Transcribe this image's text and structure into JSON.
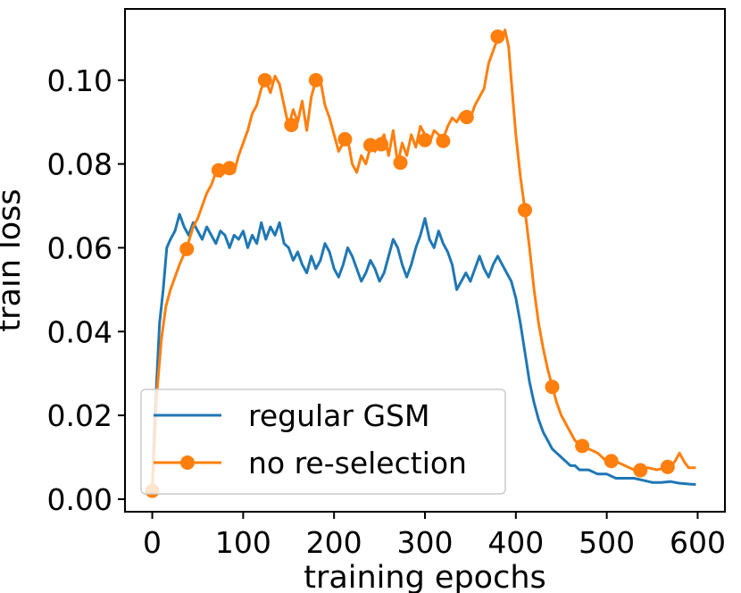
{
  "chart_data": {
    "type": "line",
    "title": "",
    "xlabel": "training epochs",
    "ylabel": "train loss",
    "xlim": [
      -30,
      630
    ],
    "ylim": [
      -0.003,
      0.117
    ],
    "xticks": [
      0,
      100,
      200,
      300,
      400,
      500,
      600
    ],
    "xtick_labels": [
      "0",
      "100",
      "200",
      "300",
      "400",
      "500",
      "600"
    ],
    "yticks": [
      0.0,
      0.02,
      0.04,
      0.06,
      0.08,
      0.1
    ],
    "ytick_labels": [
      "0.00",
      "0.02",
      "0.04",
      "0.06",
      "0.08",
      "0.10"
    ],
    "grid": false,
    "legend_position": "lower-left",
    "series": [
      {
        "name": "regular GSM",
        "color": "#1f77b4",
        "marker": "none",
        "points": [
          [
            0,
            0.002
          ],
          [
            3,
            0.02
          ],
          [
            8,
            0.042
          ],
          [
            12,
            0.05
          ],
          [
            16,
            0.06
          ],
          [
            20,
            0.062
          ],
          [
            25,
            0.064
          ],
          [
            30,
            0.068
          ],
          [
            35,
            0.065
          ],
          [
            40,
            0.063
          ],
          [
            45,
            0.066
          ],
          [
            50,
            0.064
          ],
          [
            55,
            0.062
          ],
          [
            60,
            0.065
          ],
          [
            65,
            0.063
          ],
          [
            70,
            0.061
          ],
          [
            75,
            0.064
          ],
          [
            80,
            0.063
          ],
          [
            85,
            0.06
          ],
          [
            90,
            0.063
          ],
          [
            95,
            0.062
          ],
          [
            100,
            0.064
          ],
          [
            105,
            0.06
          ],
          [
            110,
            0.063
          ],
          [
            115,
            0.061
          ],
          [
            120,
            0.066
          ],
          [
            125,
            0.062
          ],
          [
            130,
            0.065
          ],
          [
            135,
            0.063
          ],
          [
            140,
            0.066
          ],
          [
            145,
            0.061
          ],
          [
            150,
            0.06
          ],
          [
            155,
            0.057
          ],
          [
            160,
            0.059
          ],
          [
            165,
            0.056
          ],
          [
            170,
            0.054
          ],
          [
            175,
            0.058
          ],
          [
            180,
            0.055
          ],
          [
            185,
            0.057
          ],
          [
            190,
            0.061
          ],
          [
            195,
            0.059
          ],
          [
            200,
            0.055
          ],
          [
            205,
            0.053
          ],
          [
            210,
            0.056
          ],
          [
            215,
            0.06
          ],
          [
            220,
            0.058
          ],
          [
            225,
            0.055
          ],
          [
            230,
            0.052
          ],
          [
            235,
            0.054
          ],
          [
            240,
            0.057
          ],
          [
            245,
            0.055
          ],
          [
            250,
            0.052
          ],
          [
            255,
            0.054
          ],
          [
            260,
            0.058
          ],
          [
            265,
            0.062
          ],
          [
            270,
            0.06
          ],
          [
            275,
            0.056
          ],
          [
            280,
            0.053
          ],
          [
            285,
            0.056
          ],
          [
            290,
            0.06
          ],
          [
            295,
            0.063
          ],
          [
            300,
            0.067
          ],
          [
            305,
            0.062
          ],
          [
            310,
            0.06
          ],
          [
            315,
            0.064
          ],
          [
            320,
            0.061
          ],
          [
            325,
            0.059
          ],
          [
            330,
            0.056
          ],
          [
            335,
            0.05
          ],
          [
            340,
            0.052
          ],
          [
            345,
            0.054
          ],
          [
            350,
            0.052
          ],
          [
            355,
            0.055
          ],
          [
            360,
            0.058
          ],
          [
            365,
            0.055
          ],
          [
            370,
            0.053
          ],
          [
            375,
            0.056
          ],
          [
            380,
            0.058
          ],
          [
            385,
            0.056
          ],
          [
            390,
            0.054
          ],
          [
            395,
            0.052
          ],
          [
            400,
            0.048
          ],
          [
            405,
            0.042
          ],
          [
            410,
            0.035
          ],
          [
            415,
            0.028
          ],
          [
            420,
            0.023
          ],
          [
            425,
            0.019
          ],
          [
            430,
            0.016
          ],
          [
            435,
            0.014
          ],
          [
            440,
            0.012
          ],
          [
            445,
            0.011
          ],
          [
            450,
            0.01
          ],
          [
            455,
            0.009
          ],
          [
            460,
            0.008
          ],
          [
            465,
            0.008
          ],
          [
            470,
            0.007
          ],
          [
            480,
            0.007
          ],
          [
            490,
            0.006
          ],
          [
            500,
            0.006
          ],
          [
            510,
            0.005
          ],
          [
            520,
            0.005
          ],
          [
            530,
            0.005
          ],
          [
            540,
            0.0045
          ],
          [
            550,
            0.004
          ],
          [
            560,
            0.004
          ],
          [
            570,
            0.0042
          ],
          [
            580,
            0.0038
          ],
          [
            590,
            0.0036
          ],
          [
            598,
            0.0035
          ]
        ]
      },
      {
        "name": "no re-selection",
        "color": "#ff7f0e",
        "marker": "circle",
        "points": [
          [
            0,
            0.002
          ],
          [
            5,
            0.025
          ],
          [
            10,
            0.038
          ],
          [
            15,
            0.046
          ],
          [
            20,
            0.05
          ],
          [
            25,
            0.053
          ],
          [
            30,
            0.056
          ],
          [
            38,
            0.06
          ],
          [
            45,
            0.065
          ],
          [
            50,
            0.067
          ],
          [
            55,
            0.07
          ],
          [
            60,
            0.073
          ],
          [
            65,
            0.075
          ],
          [
            70,
            0.078
          ],
          [
            75,
            0.077
          ],
          [
            80,
            0.079
          ],
          [
            85,
            0.08
          ],
          [
            90,
            0.078
          ],
          [
            95,
            0.082
          ],
          [
            100,
            0.085
          ],
          [
            105,
            0.088
          ],
          [
            110,
            0.092
          ],
          [
            115,
            0.094
          ],
          [
            120,
            0.098
          ],
          [
            125,
            0.1
          ],
          [
            130,
            0.097
          ],
          [
            135,
            0.101
          ],
          [
            140,
            0.099
          ],
          [
            145,
            0.094
          ],
          [
            150,
            0.089
          ],
          [
            155,
            0.093
          ],
          [
            160,
            0.09
          ],
          [
            165,
            0.095
          ],
          [
            170,
            0.088
          ],
          [
            175,
            0.096
          ],
          [
            180,
            0.1
          ],
          [
            185,
            0.1
          ],
          [
            190,
            0.094
          ],
          [
            195,
            0.091
          ],
          [
            200,
            0.087
          ],
          [
            205,
            0.083
          ],
          [
            210,
            0.085
          ],
          [
            215,
            0.086
          ],
          [
            220,
            0.08
          ],
          [
            225,
            0.078
          ],
          [
            230,
            0.082
          ],
          [
            235,
            0.08
          ],
          [
            240,
            0.084
          ],
          [
            245,
            0.083
          ],
          [
            250,
            0.085
          ],
          [
            255,
            0.087
          ],
          [
            260,
            0.082
          ],
          [
            265,
            0.088
          ],
          [
            270,
            0.08
          ],
          [
            275,
            0.085
          ],
          [
            280,
            0.082
          ],
          [
            285,
            0.087
          ],
          [
            290,
            0.084
          ],
          [
            295,
            0.089
          ],
          [
            300,
            0.087
          ],
          [
            305,
            0.085
          ],
          [
            310,
            0.088
          ],
          [
            315,
            0.087
          ],
          [
            320,
            0.086
          ],
          [
            325,
            0.089
          ],
          [
            330,
            0.091
          ],
          [
            335,
            0.09
          ],
          [
            340,
            0.092
          ],
          [
            345,
            0.09
          ],
          [
            350,
            0.091
          ],
          [
            355,
            0.094
          ],
          [
            360,
            0.096
          ],
          [
            365,
            0.098
          ],
          [
            370,
            0.104
          ],
          [
            375,
            0.107
          ],
          [
            380,
            0.11
          ],
          [
            385,
            0.11
          ],
          [
            388,
            0.112
          ],
          [
            392,
            0.108
          ],
          [
            395,
            0.1
          ],
          [
            400,
            0.087
          ],
          [
            405,
            0.077
          ],
          [
            410,
            0.069
          ],
          [
            415,
            0.06
          ],
          [
            420,
            0.05
          ],
          [
            425,
            0.042
          ],
          [
            430,
            0.036
          ],
          [
            435,
            0.031
          ],
          [
            440,
            0.027
          ],
          [
            445,
            0.023
          ],
          [
            450,
            0.02
          ],
          [
            455,
            0.018
          ],
          [
            460,
            0.016
          ],
          [
            465,
            0.014
          ],
          [
            470,
            0.013
          ],
          [
            475,
            0.012
          ],
          [
            480,
            0.012
          ],
          [
            490,
            0.011
          ],
          [
            500,
            0.009
          ],
          [
            510,
            0.009
          ],
          [
            520,
            0.008
          ],
          [
            530,
            0.007
          ],
          [
            537,
            0.007
          ],
          [
            545,
            0.0075
          ],
          [
            555,
            0.007
          ],
          [
            565,
            0.0075
          ],
          [
            570,
            0.0078
          ],
          [
            575,
            0.009
          ],
          [
            580,
            0.011
          ],
          [
            585,
            0.009
          ],
          [
            590,
            0.0075
          ],
          [
            598,
            0.0075
          ]
        ],
        "marker_points": [
          [
            0,
            0.002
          ],
          [
            38,
            0.0597
          ],
          [
            73,
            0.0785
          ],
          [
            85,
            0.079
          ],
          [
            124,
            0.1
          ],
          [
            153,
            0.0893
          ],
          [
            180,
            0.1
          ],
          [
            212,
            0.0859
          ],
          [
            240,
            0.0845
          ],
          [
            252,
            0.0847
          ],
          [
            273,
            0.0803
          ],
          [
            300,
            0.0857
          ],
          [
            320,
            0.0855
          ],
          [
            346,
            0.0912
          ],
          [
            380,
            0.1104
          ],
          [
            410,
            0.069
          ],
          [
            440,
            0.0268
          ],
          [
            473,
            0.0127
          ],
          [
            505,
            0.0091
          ],
          [
            537,
            0.0069
          ],
          [
            567,
            0.0077
          ]
        ]
      }
    ]
  }
}
